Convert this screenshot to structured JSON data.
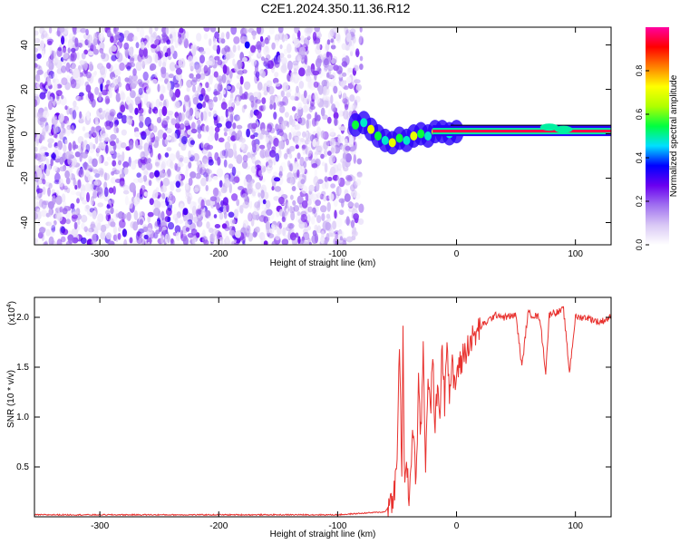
{
  "figure": {
    "title": "C2E1.2024.350.11.36.R12"
  },
  "chart_data": [
    {
      "type": "heatmap",
      "xlabel": "Height of straight line (km)",
      "ylabel": "Frequency (Hz)",
      "xlim": [
        -355,
        130
      ],
      "ylim": [
        -50,
        48
      ],
      "xticks": [
        -300,
        -200,
        -100,
        0,
        100
      ],
      "yticks": [
        -40,
        -20,
        0,
        20,
        40
      ],
      "colorbar": {
        "label": "Normalized spectral amplitude",
        "range": [
          0,
          1
        ],
        "ticks": [
          0.0,
          0.2,
          0.4,
          0.6,
          0.8
        ],
        "tick_labels": [
          "0.0",
          "0.2",
          "0.4",
          "0.6",
          "0.8"
        ],
        "colormap": [
          "#ffffff",
          "#d9c8f5",
          "#a070f0",
          "#6a00f0",
          "#0000ff",
          "#00e0ff",
          "#00ff40",
          "#b0ff00",
          "#ffff00",
          "#ff8000",
          "#ff0000",
          "#ff00a0"
        ]
      },
      "noise_region": {
        "x_range": [
          -355,
          -80
        ],
        "y_range": [
          -50,
          48
        ],
        "amplitude_range": [
          0.0,
          0.12
        ]
      },
      "transition_track": [
        {
          "x": -85,
          "y": 4
        },
        {
          "x": -78,
          "y": 5
        },
        {
          "x": -72,
          "y": 2
        },
        {
          "x": -66,
          "y": -1
        },
        {
          "x": -60,
          "y": -3
        },
        {
          "x": -54,
          "y": -4
        },
        {
          "x": -48,
          "y": -2
        },
        {
          "x": -42,
          "y": -3
        },
        {
          "x": -36,
          "y": -1
        },
        {
          "x": -30,
          "y": 0
        },
        {
          "x": -24,
          "y": -1
        },
        {
          "x": -18,
          "y": 1
        },
        {
          "x": -12,
          "y": 1
        },
        {
          "x": -6,
          "y": 0
        },
        {
          "x": 0,
          "y": 1
        }
      ],
      "carrier": {
        "x_range": [
          -20,
          130
        ],
        "frequency": 1,
        "amplitude": 0.95
      },
      "carrier_bumps": [
        {
          "x": 78,
          "y": 3
        },
        {
          "x": 90,
          "y": 2
        }
      ],
      "noise_hotspots": [
        {
          "x": -176,
          "y": 40,
          "amplitude": 0.35
        },
        {
          "x": -252,
          "y": -18,
          "amplitude": 0.3
        },
        {
          "x": -228,
          "y": -35,
          "amplitude": 0.3
        }
      ],
      "grid": false
    },
    {
      "type": "line",
      "xlabel": "Height of straight line (km)",
      "ylabel": "SNR (10 * v/v)",
      "y_multiplier": "(x10",
      "y_multiplier_exp": "4",
      "y_multiplier_close": ")",
      "xlim": [
        -355,
        130
      ],
      "ylim": [
        0,
        2.2
      ],
      "xticks": [
        -300,
        -200,
        -100,
        0,
        100
      ],
      "yticks": [
        0.5,
        1.0,
        1.5,
        2.0
      ],
      "ytick_labels": [
        "0.5",
        "1.0",
        "1.5",
        "2.0"
      ],
      "series": [
        {
          "color": "#e8322f",
          "x": [
            -355,
            -300,
            -200,
            -100,
            -60,
            -55,
            -52,
            -50,
            -48,
            -46,
            -45,
            -44,
            -43,
            -42,
            -41,
            -40,
            -38,
            -36,
            -34,
            -32,
            -30,
            -28,
            -26,
            -24,
            -22,
            -20,
            -18,
            -16,
            -14,
            -12,
            -10,
            -8,
            -6,
            -4,
            -2,
            0,
            2,
            4,
            6,
            8,
            10,
            15,
            20,
            25,
            30,
            35,
            40,
            50,
            55,
            60,
            70,
            75,
            78,
            80,
            85,
            90,
            95,
            100,
            110,
            120,
            130
          ],
          "y": [
            0.02,
            0.02,
            0.02,
            0.02,
            0.05,
            0.15,
            0.3,
            0.5,
            1.8,
            0.4,
            1.9,
            0.6,
            0.3,
            0.5,
            0.35,
            0.2,
            0.6,
            0.9,
            0.3,
            1.3,
            0.8,
            1.7,
            0.5,
            1.5,
            1.0,
            1.6,
            0.9,
            1.3,
            1.05,
            1.7,
            1.15,
            1.9,
            1.2,
            1.55,
            1.3,
            1.4,
            1.55,
            1.5,
            1.7,
            1.6,
            1.75,
            1.8,
            1.9,
            1.95,
            2.0,
            2.03,
            2.0,
            2.02,
            1.5,
            2.04,
            2.0,
            1.45,
            2.02,
            2.05,
            2.05,
            2.08,
            1.45,
            2.0,
            2.0,
            1.95,
            2.0
          ]
        }
      ],
      "grid": false
    }
  ]
}
